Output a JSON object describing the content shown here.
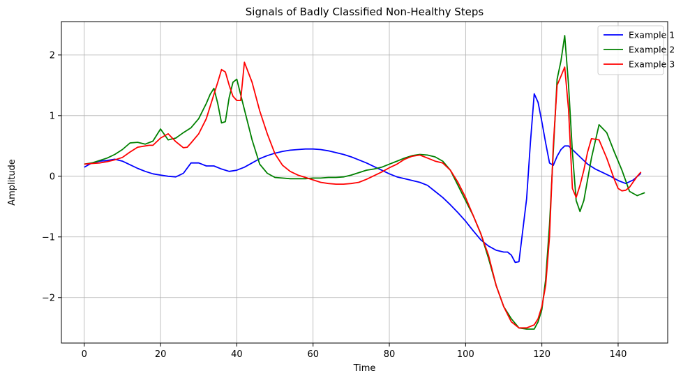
{
  "chart_data": {
    "type": "line",
    "title": "Signals of Badly Classified Non-Healthy Steps",
    "xlabel": "Time",
    "ylabel": "Amplitude",
    "xlim": [
      -6,
      153
    ],
    "ylim": [
      -2.75,
      2.55
    ],
    "xticks": [
      0,
      20,
      40,
      60,
      80,
      100,
      120,
      140
    ],
    "yticks": [
      -2,
      -1,
      0,
      1,
      2
    ],
    "xtick_labels": [
      "0",
      "20",
      "40",
      "60",
      "80",
      "100",
      "120",
      "140"
    ],
    "ytick_labels": [
      "−2",
      "−1",
      "0",
      "1",
      "2"
    ],
    "grid": true,
    "legend_position": "top-right",
    "series": [
      {
        "name": "Example 1",
        "color": "#0000ff",
        "x": [
          0,
          2,
          4,
          6,
          8,
          10,
          12,
          14,
          16,
          18,
          20,
          22,
          24,
          26,
          28,
          30,
          32,
          34,
          36,
          38,
          40,
          42,
          44,
          46,
          48,
          50,
          52,
          54,
          56,
          58,
          60,
          62,
          64,
          66,
          68,
          70,
          72,
          74,
          76,
          78,
          80,
          82,
          84,
          86,
          88,
          90,
          92,
          94,
          96,
          98,
          100,
          102,
          104,
          106,
          108,
          110,
          111,
          112,
          113,
          114,
          116,
          117,
          118,
          119,
          120,
          121,
          122,
          123,
          124,
          125,
          126,
          127,
          128,
          130,
          132,
          134,
          136,
          138,
          140,
          142,
          144,
          146
        ],
        "y": [
          0.15,
          0.22,
          0.25,
          0.26,
          0.28,
          0.25,
          0.19,
          0.13,
          0.08,
          0.04,
          0.02,
          0.0,
          -0.01,
          0.05,
          0.22,
          0.22,
          0.17,
          0.17,
          0.12,
          0.08,
          0.1,
          0.15,
          0.22,
          0.29,
          0.34,
          0.38,
          0.41,
          0.43,
          0.44,
          0.45,
          0.45,
          0.44,
          0.42,
          0.39,
          0.36,
          0.32,
          0.27,
          0.22,
          0.16,
          0.1,
          0.04,
          -0.01,
          -0.04,
          -0.07,
          -0.1,
          -0.15,
          -0.25,
          -0.35,
          -0.47,
          -0.6,
          -0.74,
          -0.9,
          -1.05,
          -1.15,
          -1.22,
          -1.25,
          -1.25,
          -1.3,
          -1.42,
          -1.41,
          -0.37,
          0.55,
          1.36,
          1.22,
          0.9,
          0.55,
          0.22,
          0.18,
          0.33,
          0.44,
          0.5,
          0.5,
          0.44,
          0.32,
          0.2,
          0.12,
          0.06,
          0.0,
          -0.07,
          -0.12,
          -0.06,
          0.05
        ]
      },
      {
        "name": "Example 2",
        "color": "#008000",
        "x": [
          0,
          2,
          4,
          6,
          8,
          10,
          12,
          14,
          16,
          18,
          20,
          22,
          24,
          26,
          28,
          30,
          32,
          33,
          34,
          35,
          36,
          37,
          38,
          39,
          40,
          42,
          44,
          46,
          48,
          50,
          52,
          54,
          56,
          58,
          60,
          62,
          64,
          66,
          68,
          70,
          72,
          74,
          76,
          78,
          80,
          82,
          84,
          86,
          88,
          90,
          92,
          94,
          96,
          98,
          100,
          102,
          104,
          106,
          108,
          110,
          112,
          114,
          116,
          118,
          119,
          120,
          121,
          122,
          123,
          124,
          125,
          126,
          127,
          128,
          129,
          130,
          131,
          133,
          135,
          137,
          139,
          141,
          143,
          145,
          147
        ],
        "y": [
          0.2,
          0.22,
          0.26,
          0.3,
          0.36,
          0.44,
          0.55,
          0.56,
          0.53,
          0.58,
          0.78,
          0.6,
          0.63,
          0.72,
          0.8,
          0.95,
          1.2,
          1.35,
          1.45,
          1.2,
          0.88,
          0.9,
          1.3,
          1.55,
          1.6,
          1.1,
          0.6,
          0.2,
          0.05,
          -0.02,
          -0.03,
          -0.04,
          -0.04,
          -0.04,
          -0.03,
          -0.03,
          -0.02,
          -0.02,
          -0.01,
          0.02,
          0.06,
          0.1,
          0.12,
          0.15,
          0.2,
          0.25,
          0.3,
          0.34,
          0.36,
          0.35,
          0.32,
          0.25,
          0.1,
          -0.15,
          -0.4,
          -0.65,
          -0.95,
          -1.35,
          -1.8,
          -2.15,
          -2.35,
          -2.5,
          -2.52,
          -2.52,
          -2.4,
          -2.2,
          -1.7,
          -0.8,
          0.4,
          1.6,
          1.9,
          2.32,
          1.5,
          0.4,
          -0.4,
          -0.58,
          -0.4,
          0.3,
          0.85,
          0.72,
          0.4,
          0.1,
          -0.25,
          -0.32,
          -0.27
        ]
      },
      {
        "name": "Example 3",
        "color": "#ff0000",
        "x": [
          0,
          2,
          4,
          6,
          8,
          10,
          12,
          14,
          16,
          17,
          18,
          20,
          22,
          24,
          26,
          27,
          28,
          30,
          32,
          34,
          35,
          36,
          37,
          38,
          39,
          40,
          41,
          42,
          44,
          46,
          48,
          50,
          52,
          54,
          56,
          58,
          60,
          62,
          64,
          66,
          68,
          70,
          72,
          74,
          76,
          78,
          80,
          82,
          84,
          86,
          88,
          90,
          92,
          94,
          96,
          98,
          100,
          102,
          104,
          106,
          108,
          110,
          112,
          114,
          116,
          118,
          119,
          120,
          121,
          122,
          123,
          124,
          125,
          126,
          127,
          128,
          129,
          130,
          131,
          132,
          133,
          135,
          137,
          139,
          140,
          141,
          142,
          143,
          145,
          146
        ],
        "y": [
          0.2,
          0.21,
          0.22,
          0.24,
          0.27,
          0.31,
          0.4,
          0.48,
          0.5,
          0.51,
          0.51,
          0.63,
          0.7,
          0.57,
          0.47,
          0.48,
          0.55,
          0.7,
          0.95,
          1.35,
          1.55,
          1.76,
          1.72,
          1.5,
          1.32,
          1.25,
          1.25,
          1.88,
          1.55,
          1.08,
          0.7,
          0.37,
          0.18,
          0.08,
          0.02,
          -0.02,
          -0.06,
          -0.1,
          -0.12,
          -0.13,
          -0.13,
          -0.12,
          -0.1,
          -0.05,
          0.01,
          0.07,
          0.14,
          0.2,
          0.28,
          0.33,
          0.35,
          0.3,
          0.25,
          0.22,
          0.1,
          -0.1,
          -0.35,
          -0.65,
          -0.95,
          -1.3,
          -1.8,
          -2.15,
          -2.4,
          -2.5,
          -2.5,
          -2.45,
          -2.35,
          -2.15,
          -1.8,
          -1.0,
          0.5,
          1.5,
          1.65,
          1.8,
          1.1,
          -0.2,
          -0.35,
          -0.15,
          0.1,
          0.4,
          0.62,
          0.6,
          0.3,
          -0.05,
          -0.2,
          -0.24,
          -0.23,
          -0.18,
          0.0,
          0.07
        ]
      }
    ]
  }
}
